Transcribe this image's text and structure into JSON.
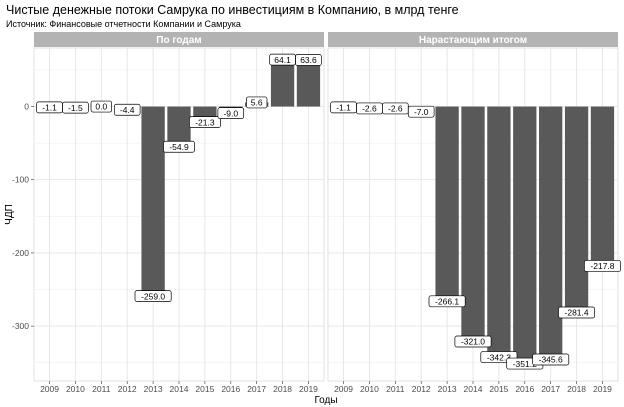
{
  "title": "Чистые денежные потоки Самрука по инвестициям в Компанию, в млрд тенге",
  "subtitle": "Источник: Финансовые отчетности Компании и Самрука",
  "colors": {
    "bar": "#595959",
    "panel_bg": "#ffffff",
    "grid": "#e5e5e5",
    "strip_bg": "#b3b3b3",
    "strip_text": "#ffffff"
  },
  "chart_data": {
    "type": "bar",
    "xlabel": "Годы",
    "ylabel": "ЧДП",
    "ylim": [
      -375,
      80
    ],
    "yticks": [
      0,
      -100,
      -200,
      -300
    ],
    "grid": true,
    "categories": [
      "2009",
      "2010",
      "2011",
      "2012",
      "2013",
      "2014",
      "2015",
      "2016",
      "2017",
      "2018",
      "2019"
    ],
    "panels": [
      {
        "name": "По годам",
        "values": [
          -1.1,
          -1.5,
          0.0,
          -4.4,
          -259.0,
          -54.9,
          -21.3,
          -9.0,
          5.6,
          64.1,
          63.6
        ],
        "labels": [
          "-1.1",
          "-1.5",
          "0.0",
          "-4.4",
          "-259.0",
          "-54.9",
          "-21.3",
          "-9.0",
          "5.6",
          "64.1",
          "63.6"
        ]
      },
      {
        "name": "Нарастающим итогом",
        "values": [
          -1.1,
          -2.6,
          -2.6,
          -7.0,
          -266.1,
          -321.0,
          -342.3,
          -351.2,
          -345.6,
          -281.4,
          -217.8
        ],
        "labels": [
          "-1.1",
          "-2.6",
          "-2.6",
          "-7.0",
          "-266.1",
          "-321.0",
          "-342.3",
          "-351.2",
          "-345.6",
          "-281.4",
          "-217.8"
        ]
      }
    ]
  }
}
